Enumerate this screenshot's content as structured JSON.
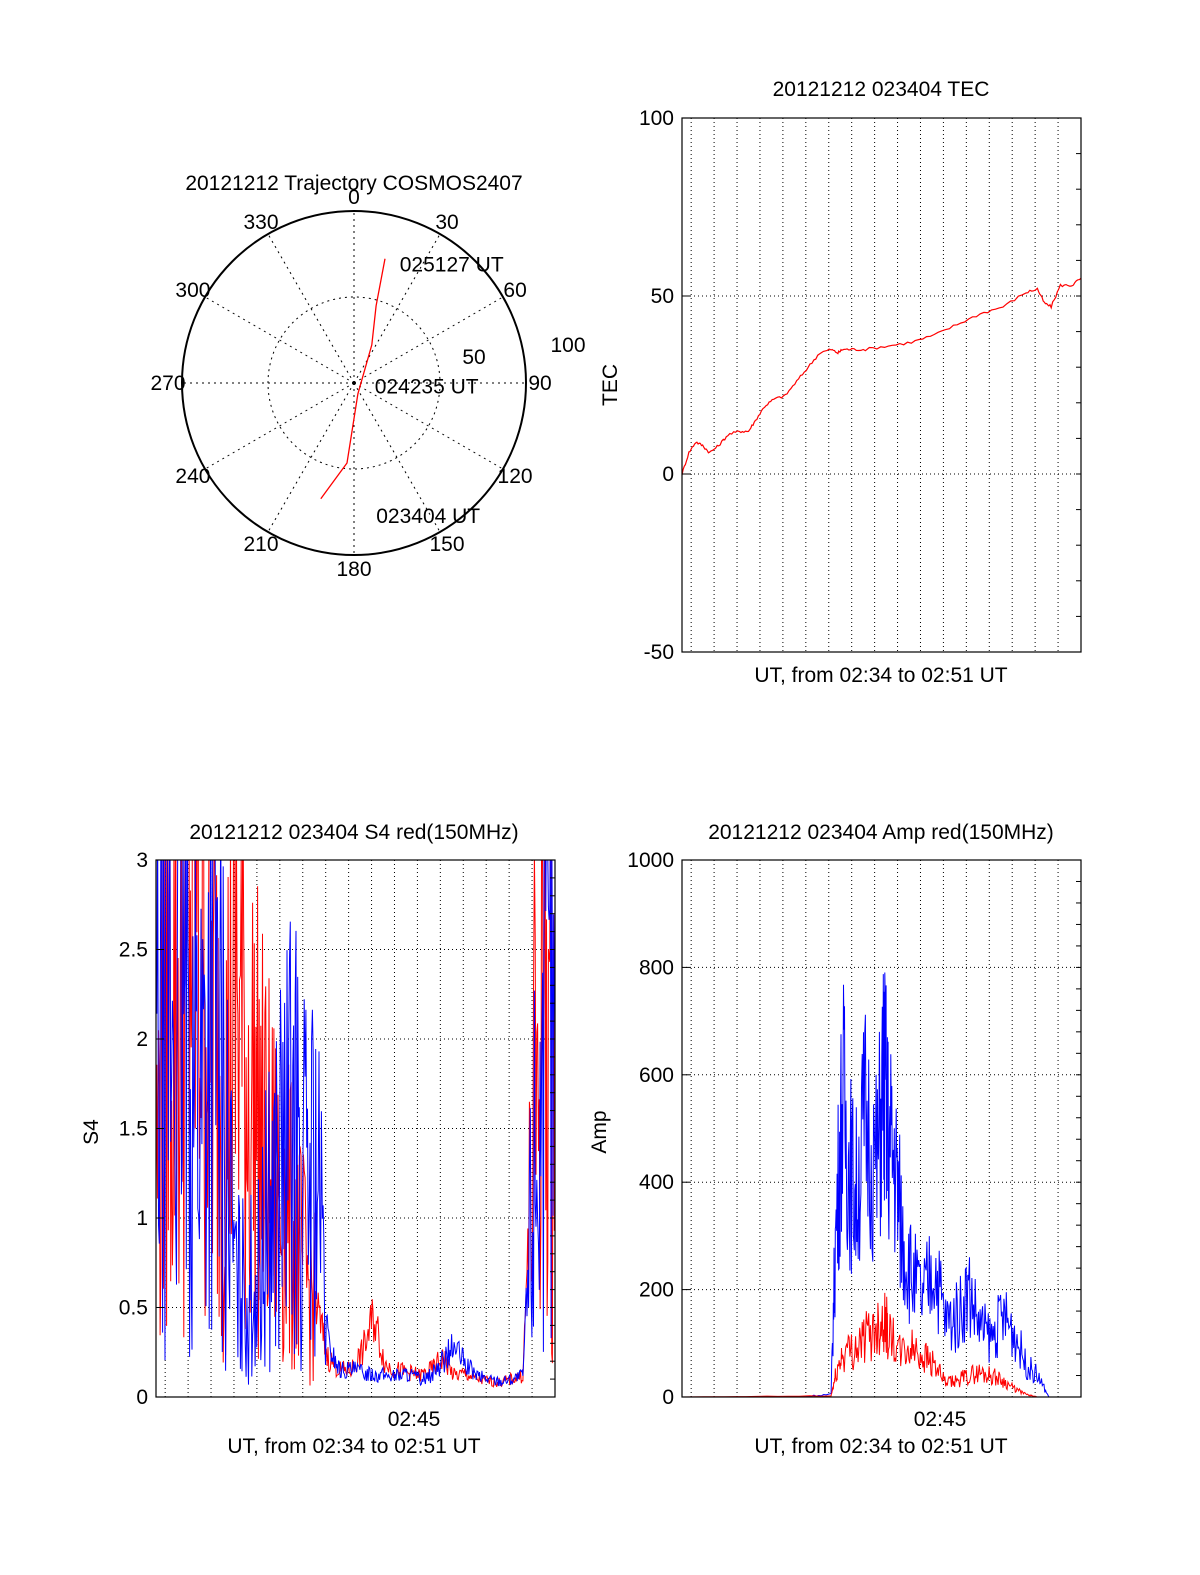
{
  "chart_data": [
    {
      "type": "polar",
      "title": "20121212 Trajectory COSMOS2407",
      "angle_labels": [
        "0",
        "30",
        "60",
        "90",
        "120",
        "150",
        "180",
        "210",
        "240",
        "270",
        "300",
        "330"
      ],
      "radius_labels": [
        "50",
        "100"
      ],
      "series": [
        {
          "color": "#ff0000",
          "points": [
            {
              "az": 196,
              "el": 27
            },
            {
              "az": 185,
              "el": 48
            },
            {
              "az": 160,
              "el": 84
            },
            {
              "az": 25,
              "el": 68
            },
            {
              "az": 16,
              "el": 48
            },
            {
              "az": 14,
              "el": 23
            }
          ]
        }
      ],
      "annotations": [
        {
          "text": "025127 UT",
          "az": 20,
          "el": 20
        },
        {
          "text": "024235 UT",
          "az": 80,
          "el": 79
        },
        {
          "text": "023404 UT",
          "az": 170,
          "el": 23
        }
      ]
    },
    {
      "type": "line",
      "title": "20121212 023404 TEC",
      "xlabel": "UT, from 02:34 to 02:51 UT",
      "ylabel": "TEC",
      "xlim": [
        0,
        17.4
      ],
      "ylim": [
        -50,
        100
      ],
      "yticks": [
        "100",
        "50",
        "0",
        "-50"
      ],
      "grid": true,
      "series": [
        {
          "color": "#ff0000",
          "x": [
            0,
            0.3,
            0.6,
            0.9,
            1.2,
            1.6,
            2.0,
            2.5,
            2.9,
            3.2,
            3.6,
            4.0,
            4.5,
            5.0,
            5.5,
            6.0,
            6.5,
            6.8,
            7.0,
            7.4,
            8.0,
            9.0,
            10.0,
            11.0,
            12.0,
            13.0,
            14.0,
            15.0,
            15.5,
            15.8,
            16.1,
            16.5,
            17.0,
            17.4
          ],
          "y": [
            0,
            6,
            9,
            8,
            6,
            8,
            11,
            12,
            12,
            15,
            19,
            21,
            22,
            26,
            30,
            34,
            35,
            34,
            35,
            35,
            35,
            36,
            37,
            39,
            42,
            45,
            47,
            51,
            52,
            48,
            47,
            53,
            53,
            55
          ]
        }
      ]
    },
    {
      "type": "line",
      "title": "20121212 023404 S4 red(150MHz)",
      "xlabel": "UT, from 02:34 to 02:51 UT",
      "ylabel": "S4",
      "xlim": [
        0,
        17.4
      ],
      "ylim": [
        0,
        3
      ],
      "yticks": [
        "3",
        "2.5",
        "2",
        "1.5",
        "1",
        "0.5",
        "0"
      ],
      "xtick_label": "02:45",
      "grid": true,
      "series": [
        {
          "color": "#ff0000",
          "x": [
            0,
            0.5,
            1.0,
            1.5,
            2.0,
            2.5,
            3.0,
            3.5,
            4.0,
            4.5,
            5.0,
            5.5,
            6.0,
            6.5,
            7.0,
            7.5,
            8.0,
            8.5,
            9.0,
            9.5,
            10.0,
            10.5,
            11.0,
            11.5,
            12.0,
            12.5,
            13.0,
            13.5,
            14.0,
            14.5,
            15.0,
            15.5,
            16.0,
            16.5,
            17.0,
            17.4
          ],
          "y": [
            1.2,
            2.4,
            2.2,
            2.8,
            2.6,
            2.0,
            1.6,
            2.3,
            1.8,
            1.5,
            1.2,
            1.1,
            0.9,
            0.7,
            0.5,
            0.22,
            0.15,
            0.15,
            0.25,
            0.45,
            0.18,
            0.15,
            0.14,
            0.12,
            0.15,
            0.22,
            0.12,
            0.13,
            0.1,
            0.09,
            0.08,
            0.1,
            0.12,
            1.6,
            2.3,
            1.7
          ]
        },
        {
          "color": "#0000ff",
          "x": [
            0,
            0.5,
            1.0,
            1.5,
            2.0,
            2.5,
            3.0,
            3.5,
            4.0,
            4.5,
            5.0,
            5.5,
            6.0,
            6.5,
            7.0,
            7.5,
            8.0,
            8.5,
            9.0,
            9.5,
            10.0,
            10.5,
            11.0,
            11.5,
            12.0,
            12.5,
            13.0,
            13.5,
            14.0,
            14.5,
            15.0,
            15.5,
            16.0,
            16.5,
            17.0,
            17.4
          ],
          "y": [
            1.8,
            2.1,
            2.2,
            2.0,
            1.8,
            2.3,
            1.5,
            0.6,
            0.6,
            0.65,
            1.1,
            1.3,
            1.5,
            1.2,
            1.3,
            0.3,
            0.15,
            0.15,
            0.14,
            0.13,
            0.12,
            0.12,
            0.13,
            0.1,
            0.12,
            0.2,
            0.28,
            0.18,
            0.12,
            0.1,
            0.09,
            0.1,
            0.12,
            1.4,
            2.0,
            1.9
          ]
        }
      ]
    },
    {
      "type": "line",
      "title": "20121212 023404 Amp red(150MHz)",
      "xlabel": "UT, from 02:34 to 02:51 UT",
      "ylabel": "Amp",
      "xlim": [
        0,
        17.4
      ],
      "ylim": [
        0,
        1000
      ],
      "yticks": [
        "1000",
        "800",
        "600",
        "400",
        "200",
        "0"
      ],
      "xtick_label": "02:45",
      "grid": true,
      "series": [
        {
          "color": "#0000ff",
          "x": [
            0,
            5.0,
            6.5,
            6.7,
            7.0,
            7.3,
            7.6,
            8.0,
            8.5,
            8.8,
            9.0,
            9.3,
            9.6,
            10.0,
            10.5,
            11.0,
            11.5,
            12.0,
            12.5,
            13.0,
            13.5,
            14.0,
            14.5,
            15.0,
            15.5,
            16.0,
            16.5,
            17.4
          ],
          "y": [
            0,
            0,
            5,
            300,
            560,
            430,
            380,
            520,
            420,
            600,
            480,
            430,
            300,
            230,
            180,
            250,
            140,
            150,
            200,
            130,
            110,
            150,
            120,
            60,
            40,
            0,
            0,
            0
          ]
        },
        {
          "color": "#ff0000",
          "x": [
            0,
            6.5,
            6.7,
            7.0,
            7.5,
            8.0,
            8.5,
            8.8,
            9.0,
            9.5,
            10.0,
            10.5,
            11.0,
            11.5,
            12.0,
            12.5,
            13.0,
            13.5,
            14.0,
            14.5,
            15.0,
            15.5,
            16.0,
            17.4
          ],
          "y": [
            0,
            2,
            40,
            80,
            90,
            110,
            130,
            150,
            120,
            80,
            90,
            80,
            60,
            25,
            30,
            40,
            45,
            40,
            30,
            15,
            5,
            0,
            0,
            0
          ]
        }
      ]
    }
  ]
}
